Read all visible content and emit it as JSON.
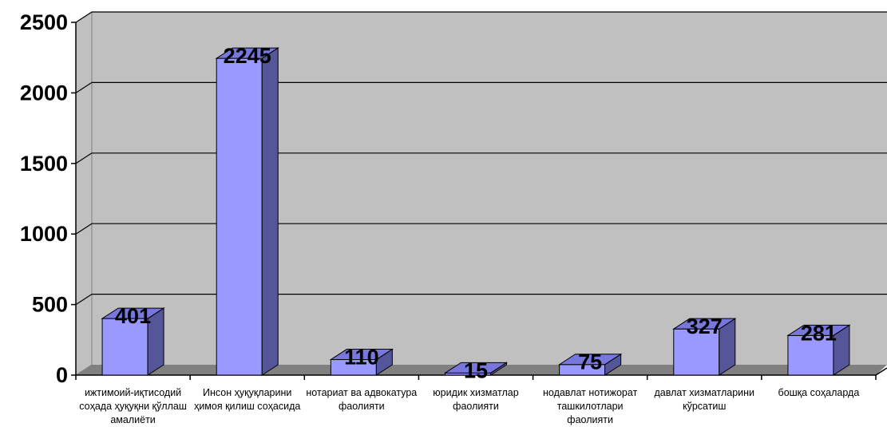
{
  "chart_data": {
    "type": "bar",
    "categories": [
      "ижтимоий-иқтисодий соҳада ҳуқуқни қўллаш амалиёти",
      "Инсон ҳуқуқларини ҳимоя қилиш соҳасида",
      "нотариат ва адвокатура фаолияти",
      "юридик хизматлар фаолияти",
      "нодавлат нотижорат ташкилотлари фаолияти",
      "давлат хизматларини кўрсатиш",
      "бошқа соҳаларда"
    ],
    "values": [
      401,
      2245,
      110,
      15,
      75,
      327,
      281
    ],
    "yticks": [
      "0",
      "500",
      "1000",
      "1500",
      "2000",
      "2500"
    ],
    "ylim": [
      0,
      2500
    ],
    "grid": true,
    "legend": "none",
    "colors": {
      "bar_front": "#9999ff",
      "bar_side": "#555599",
      "bar_top": "#7777dd",
      "wall": "#c0c0c0",
      "floor": "#808080"
    }
  }
}
